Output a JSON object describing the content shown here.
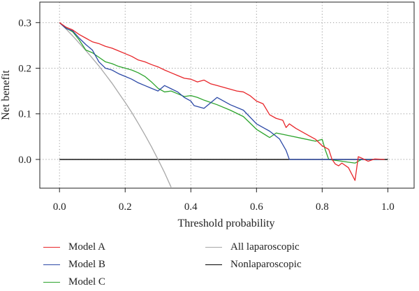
{
  "chart_data": {
    "type": "line",
    "title": "",
    "xlabel": "Threshold probability",
    "ylabel": "Net benefit",
    "xlim": [
      -0.06,
      1.08
    ],
    "ylim": [
      -0.063,
      0.345
    ],
    "x_ticks": [
      "0.0",
      "0.2",
      "0.4",
      "0.6",
      "0.8",
      "1.0"
    ],
    "x_tick_values": [
      0.0,
      0.2,
      0.4,
      0.6,
      0.8,
      1.0
    ],
    "y_ticks": [
      "0.0",
      "0.1",
      "0.2",
      "0.3"
    ],
    "y_tick_values": [
      0.0,
      0.1,
      0.2,
      0.3
    ],
    "grid": "dotted",
    "legend_placement": "bottom",
    "series": [
      {
        "name": "Model A",
        "color": "#e8262a",
        "x": [
          0.0,
          0.02,
          0.04,
          0.06,
          0.08,
          0.1,
          0.12,
          0.14,
          0.16,
          0.18,
          0.2,
          0.22,
          0.24,
          0.26,
          0.28,
          0.3,
          0.32,
          0.34,
          0.36,
          0.38,
          0.4,
          0.42,
          0.44,
          0.46,
          0.48,
          0.5,
          0.52,
          0.54,
          0.56,
          0.58,
          0.6,
          0.62,
          0.64,
          0.66,
          0.68,
          0.69,
          0.7,
          0.72,
          0.74,
          0.76,
          0.78,
          0.8,
          0.82,
          0.83,
          0.84,
          0.85,
          0.86,
          0.88,
          0.9,
          0.91,
          0.92,
          0.94,
          0.96,
          0.99
        ],
        "values": [
          0.3,
          0.29,
          0.284,
          0.274,
          0.266,
          0.258,
          0.254,
          0.248,
          0.244,
          0.238,
          0.232,
          0.226,
          0.218,
          0.214,
          0.208,
          0.203,
          0.196,
          0.19,
          0.184,
          0.178,
          0.176,
          0.17,
          0.174,
          0.166,
          0.162,
          0.158,
          0.154,
          0.15,
          0.148,
          0.14,
          0.128,
          0.122,
          0.098,
          0.09,
          0.086,
          0.07,
          0.078,
          0.068,
          0.06,
          0.052,
          0.044,
          0.03,
          0.022,
          0.0,
          -0.01,
          -0.014,
          -0.008,
          -0.018,
          -0.046,
          0.006,
          0.003,
          -0.004,
          0.001,
          0.0
        ]
      },
      {
        "name": "Model B",
        "color": "#2c49a6",
        "x": [
          0.0,
          0.02,
          0.04,
          0.06,
          0.08,
          0.1,
          0.12,
          0.14,
          0.16,
          0.18,
          0.2,
          0.22,
          0.24,
          0.26,
          0.28,
          0.3,
          0.32,
          0.34,
          0.36,
          0.38,
          0.4,
          0.41,
          0.44,
          0.48,
          0.52,
          0.56,
          0.6,
          0.64,
          0.67,
          0.69,
          0.7,
          0.8,
          0.9,
          0.99
        ],
        "values": [
          0.3,
          0.287,
          0.282,
          0.266,
          0.252,
          0.24,
          0.214,
          0.2,
          0.196,
          0.188,
          0.182,
          0.176,
          0.168,
          0.162,
          0.156,
          0.15,
          0.162,
          0.155,
          0.148,
          0.136,
          0.128,
          0.118,
          0.112,
          0.136,
          0.12,
          0.108,
          0.078,
          0.062,
          0.045,
          0.02,
          0.0,
          0.0,
          0.0,
          0.0
        ]
      },
      {
        "name": "Model C",
        "color": "#2ca42c",
        "x": [
          0.0,
          0.02,
          0.04,
          0.06,
          0.08,
          0.1,
          0.12,
          0.14,
          0.16,
          0.18,
          0.2,
          0.22,
          0.24,
          0.26,
          0.28,
          0.3,
          0.32,
          0.34,
          0.36,
          0.38,
          0.4,
          0.42,
          0.44,
          0.48,
          0.52,
          0.56,
          0.58,
          0.6,
          0.64,
          0.66,
          0.7,
          0.74,
          0.78,
          0.8,
          0.81,
          0.82,
          0.84,
          0.86,
          0.88,
          0.9,
          0.92,
          0.96,
          0.99
        ],
        "values": [
          0.3,
          0.288,
          0.28,
          0.262,
          0.24,
          0.234,
          0.224,
          0.214,
          0.21,
          0.204,
          0.2,
          0.196,
          0.19,
          0.182,
          0.17,
          0.156,
          0.148,
          0.15,
          0.144,
          0.138,
          0.14,
          0.136,
          0.13,
          0.12,
          0.108,
          0.094,
          0.08,
          0.066,
          0.048,
          0.058,
          0.052,
          0.046,
          0.04,
          0.044,
          0.02,
          0.0,
          -0.002,
          -0.004,
          -0.006,
          -0.008,
          0.0,
          0.0,
          0.0
        ]
      },
      {
        "name": "All laparoscopic",
        "color": "#a8a8a8",
        "x": [
          0.0,
          0.02,
          0.04,
          0.06,
          0.08,
          0.1,
          0.12,
          0.14,
          0.16,
          0.18,
          0.2,
          0.22,
          0.24,
          0.26,
          0.28,
          0.3,
          0.32,
          0.34
        ],
        "values": [
          0.3,
          0.286,
          0.271,
          0.255,
          0.239,
          0.222,
          0.205,
          0.186,
          0.167,
          0.146,
          0.125,
          0.103,
          0.079,
          0.054,
          0.028,
          0.0,
          -0.029,
          -0.061
        ]
      },
      {
        "name": "Nonlaparoscopic",
        "color": "#000000",
        "x": [
          0.0,
          1.0
        ],
        "values": [
          0.0,
          0.0
        ]
      }
    ]
  }
}
